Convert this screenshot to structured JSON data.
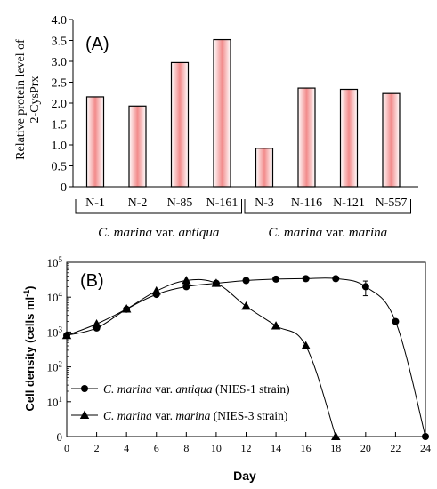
{
  "chart_data": [
    {
      "type": "bar",
      "panel_label": "(A)",
      "ylabel": "Relative protein level of 2-CysPrx",
      "xlabel": "",
      "ylim": [
        0,
        4.0
      ],
      "yticks": [
        "0",
        "0.5",
        "1.0",
        "1.5",
        "2.0",
        "2.5",
        "3.0",
        "3.5",
        "4.0"
      ],
      "categories": [
        "N-1",
        "N-2",
        "N-85",
        "N-161",
        "N-3",
        "N-116",
        "N-121",
        "N-557"
      ],
      "values": [
        2.15,
        1.93,
        2.97,
        3.52,
        0.92,
        2.36,
        2.33,
        2.23
      ],
      "groups": [
        {
          "label_italic": "C. marina",
          "label_suffix": " var. ",
          "label_tail_italic": "antiqua",
          "members": [
            "N-1",
            "N-2",
            "N-85",
            "N-161"
          ]
        },
        {
          "label_italic": "C. marina",
          "label_suffix": " var. ",
          "label_tail_italic": "marina",
          "members": [
            "N-3",
            "N-116",
            "N-121",
            "N-557"
          ]
        }
      ],
      "colors": {
        "bar_edge": "#000000",
        "bar_light": "#ffffff",
        "bar_dark": "#f28b8b"
      }
    },
    {
      "type": "line",
      "panel_label": "(B)",
      "xlabel": "Day",
      "ylabel": "Cell density (cells ml⁻¹)",
      "yscale": "log",
      "xlim": [
        0,
        24
      ],
      "xticks": [
        0,
        2,
        4,
        6,
        8,
        10,
        12,
        14,
        16,
        18,
        20,
        22,
        24
      ],
      "ytick_labels": [
        "0",
        "10¹",
        "10²",
        "10³",
        "10⁴",
        "10⁵"
      ],
      "series": [
        {
          "name_italic": "C. marina",
          "name_middle": " var. ",
          "name_italic2": "antiqua",
          "name_tail": " (NIES-1 strain)",
          "marker": "circle",
          "x": [
            0,
            2,
            4,
            6,
            8,
            10,
            12,
            14,
            16,
            18,
            20,
            22,
            24
          ],
          "y": [
            800,
            1300,
            4500,
            12000,
            20000,
            25000,
            30000,
            33000,
            34000,
            34000,
            20000,
            2000,
            0
          ],
          "error_at_x": 20
        },
        {
          "name_italic": "C. marina",
          "name_middle": " var. ",
          "name_italic2": "marina",
          "name_tail": " (NIES-3 strain)",
          "marker": "triangle",
          "x": [
            0,
            2,
            4,
            6,
            8,
            10,
            12,
            14,
            16,
            18
          ],
          "y": [
            800,
            1700,
            4600,
            15000,
            30000,
            25000,
            5500,
            1500,
            400,
            0
          ]
        }
      ],
      "legend_position": "bottom-left"
    }
  ]
}
